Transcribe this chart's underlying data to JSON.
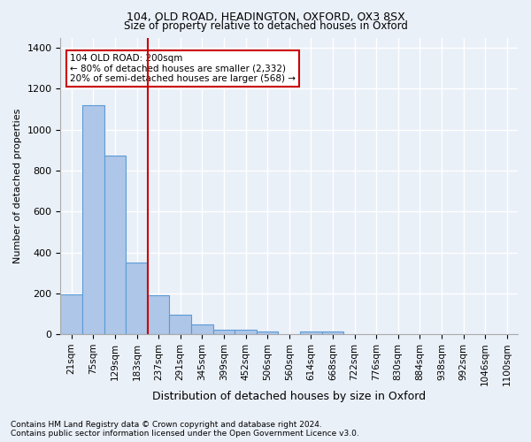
{
  "title1": "104, OLD ROAD, HEADINGTON, OXFORD, OX3 8SX",
  "title2": "Size of property relative to detached houses in Oxford",
  "xlabel": "Distribution of detached houses by size in Oxford",
  "ylabel": "Number of detached properties",
  "bin_labels": [
    "21sqm",
    "75sqm",
    "129sqm",
    "183sqm",
    "237sqm",
    "291sqm",
    "345sqm",
    "399sqm",
    "452sqm",
    "506sqm",
    "560sqm",
    "614sqm",
    "668sqm",
    "722sqm",
    "776sqm",
    "830sqm",
    "884sqm",
    "938sqm",
    "992sqm",
    "1046sqm",
    "1100sqm"
  ],
  "values": [
    195,
    1120,
    875,
    350,
    190,
    95,
    50,
    22,
    20,
    15,
    0,
    13,
    13,
    0,
    0,
    0,
    0,
    0,
    0,
    0,
    0
  ],
  "bar_color": "#aec6e8",
  "bar_edge_color": "#5b9bd5",
  "vline_x": 3.5,
  "vline_color": "#cc0000",
  "annotation_text": "104 OLD ROAD: 200sqm\n← 80% of detached houses are smaller (2,332)\n20% of semi-detached houses are larger (568) →",
  "annotation_box_color": "#ffffff",
  "annotation_box_edge_color": "#cc0000",
  "footer_text": "Contains HM Land Registry data © Crown copyright and database right 2024.\nContains public sector information licensed under the Open Government Licence v3.0.",
  "bg_color": "#eaf0f8",
  "grid_color": "#ffffff",
  "ylim": [
    0,
    1450
  ],
  "yticks": [
    0,
    200,
    400,
    600,
    800,
    1000,
    1200,
    1400
  ]
}
